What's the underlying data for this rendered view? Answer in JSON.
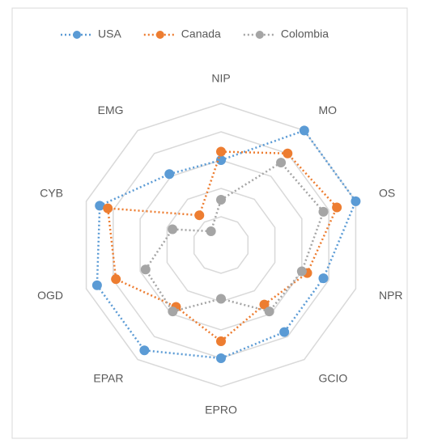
{
  "chart_data": {
    "type": "radar",
    "categories": [
      "NIP",
      "MO",
      "OS",
      "NPR",
      "GCIO",
      "EPRO",
      "EPAR",
      "OGD",
      "CYB",
      "EMG"
    ],
    "series": [
      {
        "name": "USA",
        "color": "#5b9bd5",
        "values": [
          3.0,
          5.0,
          5.0,
          3.8,
          3.8,
          4.0,
          4.6,
          4.6,
          4.5,
          3.1
        ]
      },
      {
        "name": "Canada",
        "color": "#ed7d31",
        "values": [
          3.3,
          4.0,
          4.3,
          3.2,
          2.6,
          3.4,
          2.7,
          3.9,
          4.2,
          1.3
        ]
      },
      {
        "name": "Colombia",
        "color": "#a5a5a5",
        "values": [
          1.6,
          3.6,
          3.8,
          3.0,
          2.9,
          1.9,
          2.9,
          2.8,
          1.8,
          0.6
        ]
      }
    ],
    "ylim": [
      0,
      5
    ],
    "yticks": [
      1,
      2,
      3,
      4,
      5
    ],
    "grid": true,
    "legend": "top"
  }
}
